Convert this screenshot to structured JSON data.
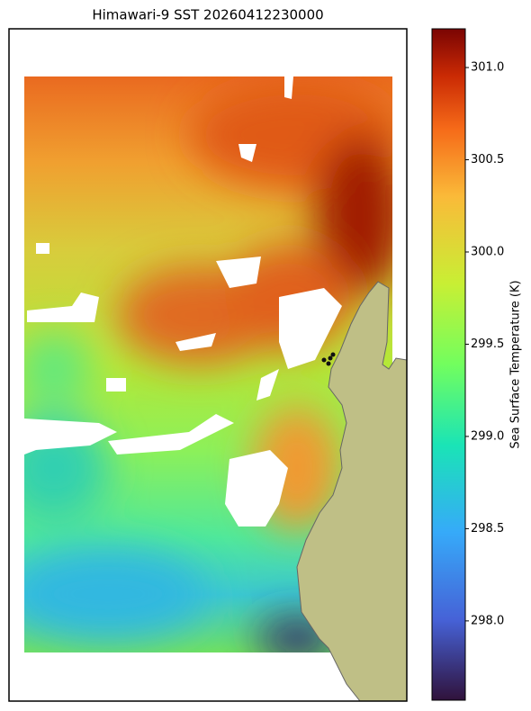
{
  "map": {
    "title": "Himawari-9 SST 20260412230000",
    "colorbar": {
      "label": "Sea Surface Temperature (K)",
      "lim": [
        297.57,
        301.21
      ],
      "ticks": [
        {
          "value": 298.0,
          "label": "298.0"
        },
        {
          "value": 298.5,
          "label": "298.5"
        },
        {
          "value": 299.0,
          "label": "299.0"
        },
        {
          "value": 299.5,
          "label": "299.5"
        },
        {
          "value": 300.0,
          "label": "300.0"
        },
        {
          "value": 300.5,
          "label": "300.5"
        },
        {
          "value": 301.0,
          "label": "301.0"
        }
      ]
    }
  }
}
